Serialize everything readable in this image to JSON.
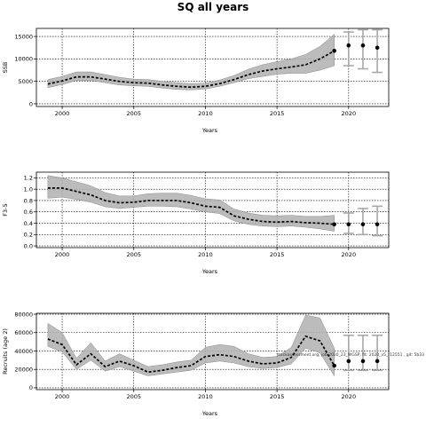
{
  "figure": {
    "title": "SQ all years",
    "note": "stockassessment.org, job 2020_23_WGSP, fit: 2020_v5_r12551 , git: 5b33"
  },
  "chart_data": [
    {
      "type": "line",
      "ylabel": "SSB",
      "xlabel": "Years",
      "xlim": [
        1998.2,
        2022.8
      ],
      "ylim": [
        -600,
        16800
      ],
      "xticks": [
        2000,
        2005,
        2010,
        2015,
        2020
      ],
      "yticks": [
        0,
        5000,
        10000,
        15000
      ],
      "grid": true,
      "x": [
        1999,
        2000,
        2001,
        2002,
        2003,
        2004,
        2005,
        2006,
        2007,
        2008,
        2009,
        2010,
        2011,
        2012,
        2013,
        2014,
        2015,
        2016,
        2017,
        2018,
        2019
      ],
      "values": [
        4400,
        5100,
        6000,
        6000,
        5500,
        5000,
        4700,
        4600,
        4200,
        3900,
        3700,
        3900,
        4500,
        5400,
        6500,
        7300,
        7800,
        8200,
        8700,
        10000,
        11800
      ],
      "lower": [
        3600,
        4300,
        5200,
        5200,
        4700,
        4200,
        4000,
        3900,
        3500,
        3200,
        3100,
        3300,
        3900,
        4700,
        5600,
        6100,
        6600,
        6800,
        6800,
        7500,
        8500
      ],
      "upper": [
        5400,
        6100,
        7100,
        7100,
        6500,
        5900,
        5500,
        5400,
        5000,
        4700,
        4500,
        4600,
        5300,
        6300,
        7700,
        8700,
        9400,
        10000,
        11000,
        12800,
        15500
      ],
      "forecast_x": [
        2020,
        2021,
        2022
      ],
      "forecast_values": [
        13000,
        13000,
        12500
      ],
      "forecast_lower": [
        8500,
        7800,
        7000
      ],
      "forecast_upper": [
        16000,
        16500,
        16500
      ]
    },
    {
      "type": "line",
      "ylabel": "F3-5",
      "xlabel": "Years",
      "xlim": [
        1998.2,
        2022.8
      ],
      "ylim": [
        -0.03,
        1.3
      ],
      "xticks": [
        2000,
        2005,
        2010,
        2015,
        2020
      ],
      "yticks": [
        "0.0",
        "0.2",
        "0.4",
        "0.6",
        "0.8",
        "1.0",
        "1.2"
      ],
      "grid": true,
      "x": [
        1999,
        2000,
        2001,
        2002,
        2003,
        2004,
        2005,
        2006,
        2007,
        2008,
        2009,
        2010,
        2011,
        2012,
        2013,
        2014,
        2015,
        2016,
        2017,
        2018,
        2019
      ],
      "values": [
        1.02,
        1.02,
        0.96,
        0.9,
        0.8,
        0.76,
        0.77,
        0.8,
        0.8,
        0.8,
        0.76,
        0.7,
        0.68,
        0.53,
        0.47,
        0.43,
        0.42,
        0.43,
        0.41,
        0.4,
        0.38
      ],
      "lower": [
        0.84,
        0.86,
        0.82,
        0.77,
        0.69,
        0.66,
        0.68,
        0.7,
        0.7,
        0.69,
        0.65,
        0.6,
        0.57,
        0.44,
        0.38,
        0.35,
        0.34,
        0.35,
        0.33,
        0.3,
        0.26
      ],
      "upper": [
        1.24,
        1.2,
        1.13,
        1.06,
        0.94,
        0.88,
        0.88,
        0.92,
        0.93,
        0.93,
        0.89,
        0.83,
        0.81,
        0.65,
        0.58,
        0.54,
        0.53,
        0.54,
        0.52,
        0.52,
        0.54
      ],
      "forecast_x": [
        2020,
        2021,
        2022
      ],
      "forecast_values": [
        0.38,
        0.38,
        0.38
      ],
      "forecast_lower": [
        0.22,
        0.2,
        0.18
      ],
      "forecast_upper": [
        0.58,
        0.66,
        0.7
      ]
    },
    {
      "type": "line",
      "ylabel": "Recruits (age 2)",
      "xlabel": "Years",
      "xlim": [
        1998.2,
        2022.8
      ],
      "ylim": [
        -2000,
        81000
      ],
      "xticks": [
        2000,
        2005,
        2010,
        2015,
        2020
      ],
      "yticks": [
        0,
        20000,
        40000,
        60000,
        80000
      ],
      "grid": true,
      "x": [
        1999,
        2000,
        2001,
        2002,
        2003,
        2004,
        2005,
        2006,
        2007,
        2008,
        2009,
        2010,
        2011,
        2012,
        2013,
        2014,
        2015,
        2016,
        2017,
        2018,
        2019
      ],
      "values": [
        53000,
        47000,
        25000,
        37000,
        23000,
        29000,
        24000,
        17000,
        19000,
        22000,
        24000,
        34000,
        36000,
        34000,
        29000,
        26000,
        27000,
        33000,
        56000,
        51000,
        24000
      ],
      "lower": [
        45000,
        39000,
        20000,
        30000,
        18000,
        23000,
        18000,
        13000,
        15000,
        17000,
        19000,
        27000,
        29000,
        27000,
        23000,
        21000,
        22000,
        26000,
        43000,
        38000,
        13000
      ],
      "upper": [
        70000,
        60000,
        32000,
        49000,
        29000,
        37000,
        30000,
        23000,
        25000,
        28000,
        30000,
        44000,
        47000,
        45000,
        37000,
        33000,
        34000,
        44000,
        79000,
        76000,
        43000
      ],
      "forecast_x": [
        2020,
        2021,
        2022
      ],
      "forecast_values": [
        29000,
        29000,
        29000
      ],
      "forecast_lower": [
        19000,
        19000,
        19000
      ],
      "forecast_upper": [
        57000,
        57000,
        57000
      ]
    }
  ]
}
